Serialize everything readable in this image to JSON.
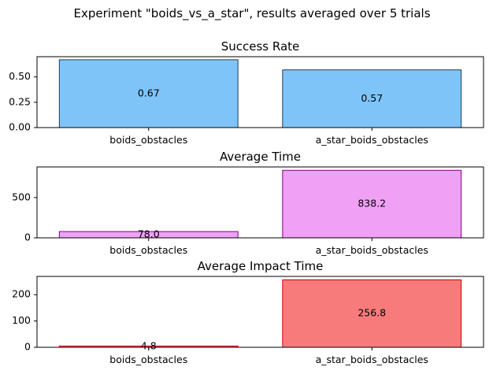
{
  "suptitle": "Experiment \"boids_vs_a_star\", results averaged over 5 trials",
  "chart_data": [
    {
      "type": "bar",
      "title": "Success Rate",
      "categories": [
        "boids_obstacles",
        "a_star_boids_obstacles"
      ],
      "values": [
        0.67,
        0.57
      ],
      "value_labels": [
        "0.67",
        "0.57"
      ],
      "ylim": [
        0,
        0.7
      ],
      "yticks": [
        0.0,
        0.25,
        0.5
      ],
      "ytick_labels": [
        "0.00",
        "0.25",
        "0.50"
      ],
      "bar_fill": "#7fc4f8",
      "bar_edge": "#1f3b58",
      "xlabel": "",
      "ylabel": "",
      "grid": false
    },
    {
      "type": "bar",
      "title": "Average Time",
      "categories": [
        "boids_obstacles",
        "a_star_boids_obstacles"
      ],
      "values": [
        78.0,
        838.2
      ],
      "value_labels": [
        "78.0",
        "838.2"
      ],
      "ylim": [
        0,
        880
      ],
      "yticks": [
        0,
        500
      ],
      "ytick_labels": [
        "0",
        "500"
      ],
      "bar_fill": "#f0a0f5",
      "bar_edge": "#800080",
      "xlabel": "",
      "ylabel": "",
      "grid": false
    },
    {
      "type": "bar",
      "title": "Average Impact Time",
      "categories": [
        "boids_obstacles",
        "a_star_boids_obstacles"
      ],
      "values": [
        4.8,
        256.8
      ],
      "value_labels": [
        "4.8",
        "256.8"
      ],
      "ylim": [
        0,
        269.6
      ],
      "yticks": [
        0,
        100,
        200
      ],
      "ytick_labels": [
        "0",
        "100",
        "200"
      ],
      "bar_fill": "#f87b7b",
      "bar_edge": "#cc0000",
      "xlabel": "",
      "ylabel": "",
      "grid": false
    }
  ]
}
